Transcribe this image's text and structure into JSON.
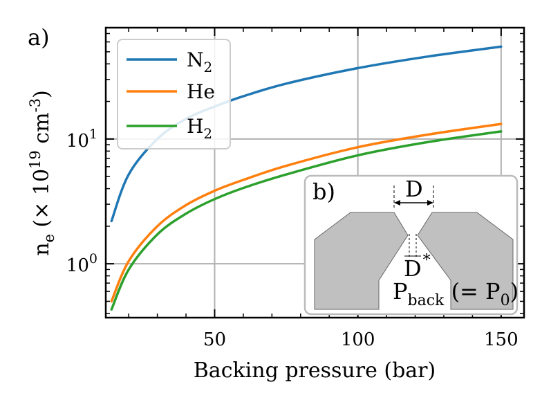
{
  "chart_data": {
    "type": "line",
    "panel_label": "a)",
    "title": "",
    "xlabel": "Backing pressure (bar)",
    "ylabel": {
      "base": "n",
      "sub": "e",
      "pre": " (× 10",
      "sup": "19",
      "mid": " cm",
      "sup2": "-3",
      "post": ")"
    },
    "xlim": [
      12,
      158
    ],
    "ylim": [
      0.37,
      78
    ],
    "yscale": "log",
    "grid": true,
    "x_ticks": [
      50,
      100,
      150
    ],
    "x_tick_labels": [
      "50",
      "100",
      "150"
    ],
    "y_ticks": [
      1,
      10
    ],
    "y_tick_labels": [
      {
        "base": "10",
        "sup": "0"
      },
      {
        "base": "10",
        "sup": "1"
      }
    ],
    "legend_position": "top-left",
    "series": [
      {
        "name": "N2",
        "label_base": "N",
        "label_sub": "2",
        "color": "#1f77b4",
        "x": [
          14,
          20,
          30,
          40,
          50,
          60,
          75,
          100,
          125,
          150
        ],
        "y": [
          2.2,
          5.2,
          10.0,
          14.5,
          18.2,
          22.0,
          27.8,
          37.0,
          46.0,
          55.0
        ]
      },
      {
        "name": "He",
        "label_base": "He",
        "label_sub": "",
        "color": "#ff7f0e",
        "x": [
          14,
          20,
          30,
          40,
          50,
          60,
          75,
          100,
          125,
          150
        ],
        "y": [
          0.5,
          1.05,
          2.0,
          2.95,
          3.85,
          4.7,
          6.1,
          8.6,
          10.9,
          13.2
        ]
      },
      {
        "name": "H2",
        "label_base": "H",
        "label_sub": "2",
        "color": "#2ca02c",
        "x": [
          14,
          20,
          30,
          40,
          50,
          60,
          75,
          100,
          125,
          150
        ],
        "y": [
          0.43,
          0.9,
          1.72,
          2.52,
          3.3,
          4.05,
          5.2,
          7.4,
          9.5,
          11.5
        ]
      }
    ]
  },
  "inset": {
    "panel_label": "b)",
    "nozzle_fill": "#c0c0c0",
    "exit_diameter_label": "D",
    "throat_label": "D",
    "throat_sup": "*",
    "pressure_label": {
      "base": "P",
      "sub": "back",
      "mid": " (= P",
      "sub2": "0",
      "post": ")"
    }
  }
}
